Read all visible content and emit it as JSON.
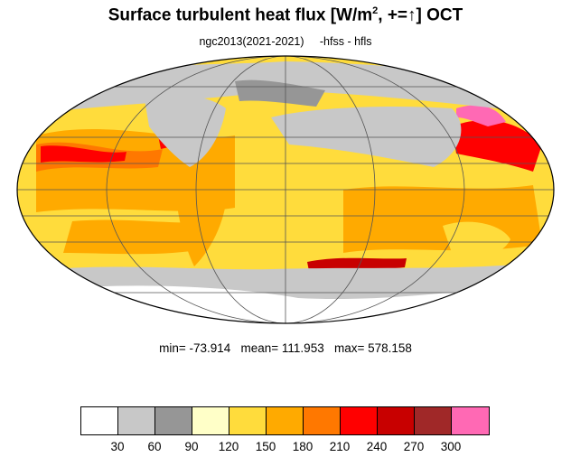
{
  "title_main": "Surface turbulent heat flux [W/m",
  "title_sup": "2",
  "title_tail": ", +=",
  "title_arrow": "↑",
  "title_end": "]  OCT",
  "subtitle": "ngc2013(2021-2021)     -hfss - hfls",
  "stats": "min= -73.914   mean= 111.953   max= 578.158",
  "colorbar": {
    "colors": [
      "#ffffff",
      "#c8c8c8",
      "#969696",
      "#ffffc8",
      "#ffdc3c",
      "#ffaa00",
      "#ff7800",
      "#ff0000",
      "#c80000",
      "#a02828",
      "#ff69b4"
    ],
    "ticks": [
      "30",
      "60",
      "90",
      "120",
      "150",
      "180",
      "210",
      "240",
      "270",
      "300"
    ]
  },
  "map": {
    "projection": "Mollweide",
    "variable": "turbulent heat flux",
    "month": "OCT"
  }
}
